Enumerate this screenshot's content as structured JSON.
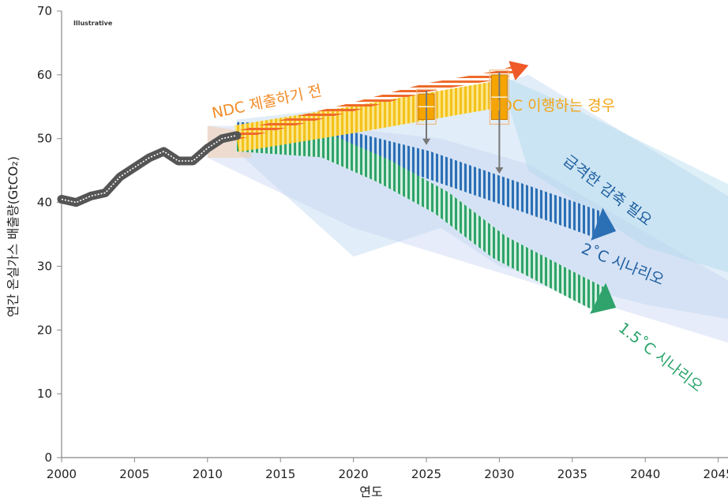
{
  "chart_data": {
    "type": "line",
    "small_label": "Illustrative",
    "xlabel": "연도",
    "ylabel": "연간 온실가스 배출량(GtCO₂)",
    "xlim": [
      2000,
      2050
    ],
    "ylim": [
      0,
      70
    ],
    "x_ticks": [
      "2000",
      "2005",
      "2010",
      "2015",
      "2020",
      "2025",
      "2030",
      "2035",
      "2040",
      "2045"
    ],
    "y_ticks": [
      "0",
      "10",
      "20",
      "30",
      "40",
      "50",
      "60",
      "70"
    ],
    "historical": {
      "x": [
        2000,
        2001,
        2002,
        2003,
        2004,
        2005,
        2006,
        2007,
        2008,
        2009,
        2010,
        2011,
        2012
      ],
      "y": [
        40.5,
        40,
        41,
        41.5,
        44,
        45.5,
        47,
        48,
        46.5,
        46.5,
        48.5,
        50,
        50.5
      ]
    },
    "annotations": [
      {
        "key": "pre_ndc",
        "text": "NDC 제출하기 전",
        "color": "#f28c28"
      },
      {
        "key": "ndc",
        "text": "NDC 이행하는 경우",
        "color": "#f2a516"
      },
      {
        "key": "rapid",
        "text": "급격한 감축 필요",
        "color": "#1f5fa0"
      },
      {
        "key": "s2",
        "text": "2˚C 시나리오",
        "color": "#1f5fa0"
      },
      {
        "key": "s15",
        "text": "1.5˚C 시나리오",
        "color": "#2aa36a"
      }
    ],
    "pathways": {
      "pre_ndc": {
        "x": [
          2012,
          2020,
          2025,
          2030,
          2032
        ],
        "y": [
          50.5,
          55,
          58,
          60,
          61.5
        ]
      },
      "ndc": {
        "x": [
          2012,
          2020,
          2025,
          2030
        ],
        "y": [
          50,
          53,
          55,
          57
        ]
      },
      "rapid": {
        "x": [
          2012,
          2018,
          2025,
          2030,
          2035,
          2038
        ],
        "y": [
          50.5,
          50,
          46,
          42,
          38,
          35.5
        ]
      },
      "s15": {
        "x": [
          2012,
          2018,
          2022,
          2026,
          2030,
          2035,
          2038
        ],
        "y": [
          50,
          49,
          45,
          40,
          33,
          27,
          23.5
        ]
      }
    },
    "ndc_ranges": [
      {
        "x": 2025,
        "low": 53,
        "high": 57,
        "arrow_to": 49
      },
      {
        "x": 2030,
        "low": 53,
        "high": 60,
        "arrow_to": 44.5
      }
    ],
    "grid": false,
    "legend": "none"
  }
}
